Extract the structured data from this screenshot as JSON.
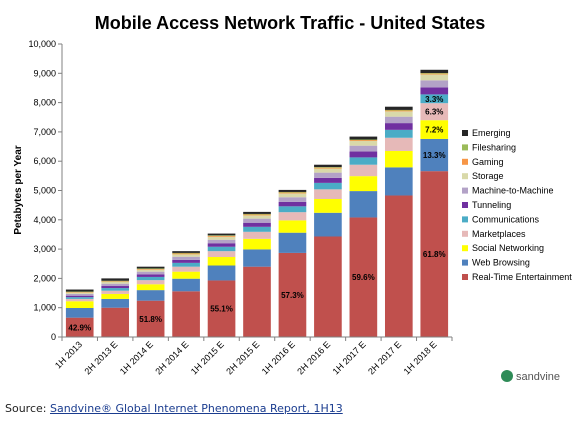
{
  "chart_data": {
    "type": "bar",
    "stacked": true,
    "title": "Mobile Access Network Traffic - United States",
    "ylabel": "Petabytes per Year",
    "xlabel": "",
    "ylim": [
      0,
      10000
    ],
    "yticks": [
      "0",
      "1,000",
      "2,000",
      "3,000",
      "4,000",
      "5,000",
      "6,000",
      "7,000",
      "8,000",
      "9,000",
      "10,000"
    ],
    "grid": false,
    "legend_position": "right",
    "categories": [
      "1H 2013",
      "2H 2013 E",
      "1H 2014 E",
      "2H 2014 E",
      "1H 2015 E",
      "2H 2015 E",
      "1H 2016 E",
      "2H 2016 E",
      "1H 2017 E",
      "2H 2017 E",
      "1H 2018 E"
    ],
    "series": [
      {
        "name": "Real-Time Entertainment",
        "color": "#c0504d",
        "values": [
          660,
          1000,
          1240,
          1560,
          1930,
          2400,
          2870,
          3430,
          4080,
          4830,
          5660
        ]
      },
      {
        "name": "Web Browsing",
        "color": "#4f81bd",
        "values": [
          330,
          300,
          360,
          430,
          510,
          590,
          690,
          810,
          900,
          960,
          1100
        ]
      },
      {
        "name": "Social Networking",
        "color": "#ffff00",
        "values": [
          230,
          170,
          200,
          240,
          290,
          360,
          420,
          470,
          510,
          560,
          640
        ]
      },
      {
        "name": "Marketplaces",
        "color": "#e6b9b8",
        "values": [
          80,
          110,
          140,
          170,
          200,
          240,
          280,
          330,
          390,
          450,
          580
        ]
      },
      {
        "name": "Communications",
        "color": "#4bacc6",
        "values": [
          60,
          90,
          110,
          130,
          150,
          170,
          200,
          220,
          250,
          270,
          300
        ]
      },
      {
        "name": "Tunneling",
        "color": "#7030a0",
        "values": [
          50,
          70,
          90,
          100,
          120,
          140,
          150,
          170,
          200,
          230,
          240
        ]
      },
      {
        "name": "Machine-to-Machine",
        "color": "#b3a2c7",
        "values": [
          60,
          80,
          90,
          110,
          120,
          140,
          160,
          180,
          200,
          220,
          240
        ]
      },
      {
        "name": "Storage",
        "color": "#d9d9a9",
        "values": [
          40,
          60,
          70,
          80,
          100,
          110,
          130,
          140,
          160,
          180,
          200
        ]
      },
      {
        "name": "Gaming",
        "color": "#f79646",
        "values": [
          20,
          20,
          20,
          30,
          30,
          30,
          30,
          30,
          30,
          30,
          30
        ]
      },
      {
        "name": "Filesharing",
        "color": "#9bbb59",
        "values": [
          20,
          20,
          20,
          20,
          20,
          20,
          20,
          20,
          20,
          20,
          20
        ]
      },
      {
        "name": "Emerging",
        "color": "#262626",
        "values": [
          70,
          80,
          60,
          60,
          60,
          70,
          70,
          80,
          100,
          110,
          110
        ]
      }
    ],
    "annotations": [
      {
        "category": "1H 2013",
        "series": "Real-Time Entertainment",
        "text": "42.9%"
      },
      {
        "category": "1H 2014 E",
        "series": "Real-Time Entertainment",
        "text": "51.8%"
      },
      {
        "category": "1H 2015 E",
        "series": "Real-Time Entertainment",
        "text": "55.1%"
      },
      {
        "category": "1H 2016 E",
        "series": "Real-Time Entertainment",
        "text": "57.3%"
      },
      {
        "category": "1H 2017 E",
        "series": "Real-Time Entertainment",
        "text": "59.6%"
      },
      {
        "category": "1H 2018 E",
        "series": "Real-Time Entertainment",
        "text": "61.8%"
      },
      {
        "category": "1H 2018 E",
        "series": "Web Browsing",
        "text": "13.3%"
      },
      {
        "category": "1H 2018 E",
        "series": "Social Networking",
        "text": "7.2%"
      },
      {
        "category": "1H 2018 E",
        "series": "Marketplaces",
        "text": "6.3%"
      },
      {
        "category": "1H 2018 E",
        "series": "Communications",
        "text": "3.3%"
      }
    ]
  },
  "branding": {
    "logo_text": "sandvine"
  },
  "source": {
    "prefix": "Source: ",
    "link_text": "Sandvine® Global Internet Phenomena Report, 1H13"
  }
}
